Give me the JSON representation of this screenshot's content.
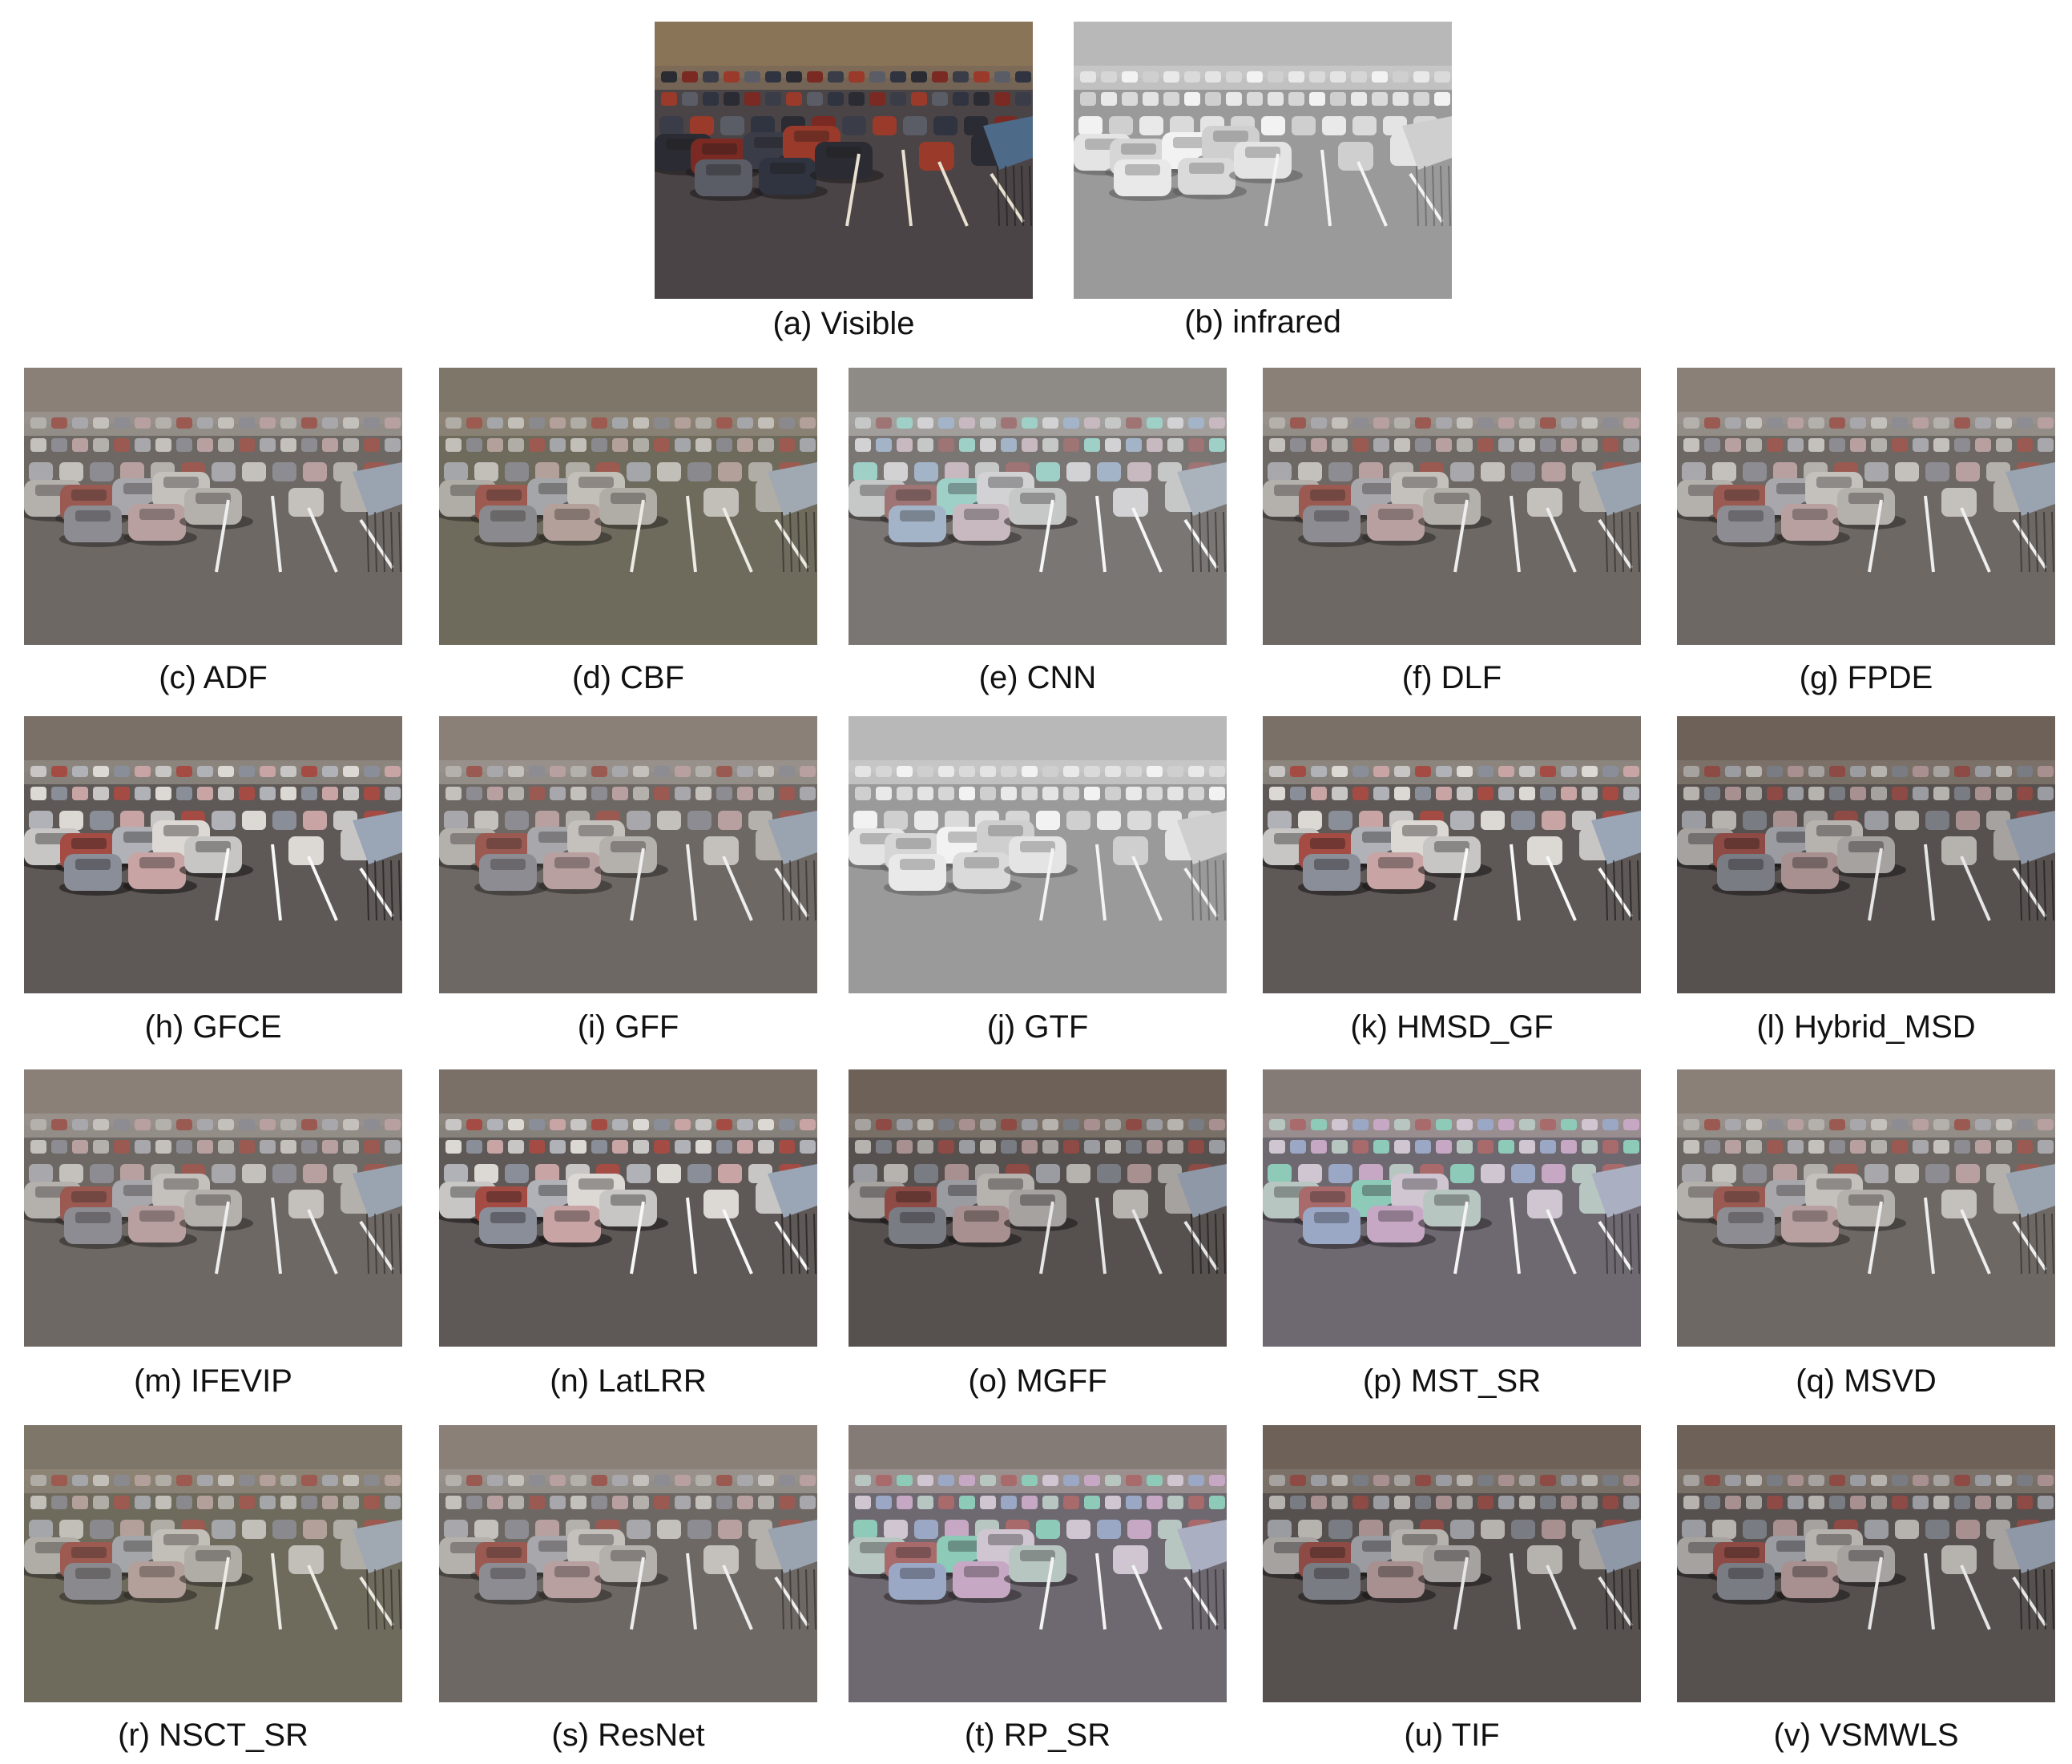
{
  "panels": [
    {
      "label": "(a) Visible",
      "palette": "visible"
    },
    {
      "label": "(b) infrared",
      "palette": "infrared"
    },
    {
      "label": "(c) ADF",
      "palette": "fused"
    },
    {
      "label": "(d) CBF",
      "palette": "noisy"
    },
    {
      "label": "(e) CNN",
      "palette": "bright"
    },
    {
      "label": "(f) DLF",
      "palette": "fused"
    },
    {
      "label": "(g) FPDE",
      "palette": "fused"
    },
    {
      "label": "(h) GFCE",
      "palette": "contrast"
    },
    {
      "label": "(i) GFF",
      "palette": "fused"
    },
    {
      "label": "(j) GTF",
      "palette": "infrared"
    },
    {
      "label": "(k) HMSD_GF",
      "palette": "contrast"
    },
    {
      "label": "(l) Hybrid_MSD",
      "palette": "dark"
    },
    {
      "label": "(m) IFEVIP",
      "palette": "fused"
    },
    {
      "label": "(n) LatLRR",
      "palette": "contrast"
    },
    {
      "label": "(o) MGFF",
      "palette": "dark"
    },
    {
      "label": "(p) MST_SR",
      "palette": "tinted"
    },
    {
      "label": "(q) MSVD",
      "palette": "fused"
    },
    {
      "label": "(r) NSCT_SR",
      "palette": "noisy"
    },
    {
      "label": "(s) ResNet",
      "palette": "fused"
    },
    {
      "label": "(t) RP_SR",
      "palette": "tinted"
    },
    {
      "label": "(u) TIF",
      "palette": "dark"
    },
    {
      "label": "(v) VSMWLS",
      "palette": "dark"
    }
  ]
}
